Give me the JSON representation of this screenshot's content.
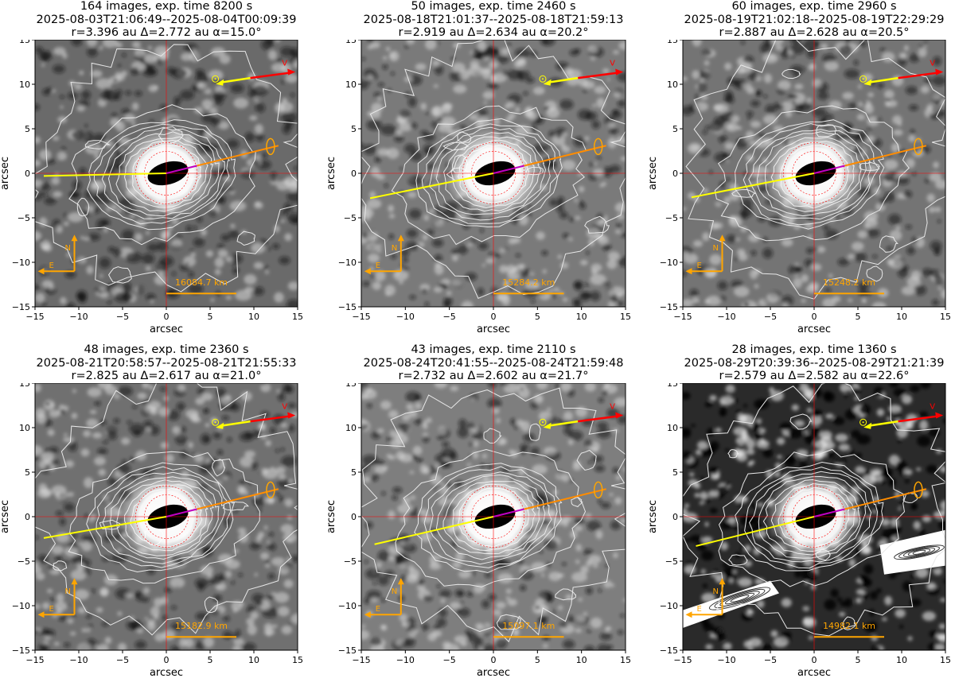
{
  "panels": [
    {
      "title1": "164 images, exp. time 8200 s",
      "title2": "2025-08-03T21:06:49--2025-08-04T00:09:39",
      "title3": "r=3.396 au Δ=2.772 au α=15.0°",
      "scale": "16084.7 km",
      "xlabel": "arcsec",
      "ylabel": "arcsec",
      "bg": "#6a6a6a",
      "compass_n": "N",
      "compass_e": "E",
      "velocity": "V"
    },
    {
      "title1": "50 images, exp. time 2460 s",
      "title2": "2025-08-18T21:01:37--2025-08-18T21:59:13",
      "title3": "r=2.919 au Δ=2.634 au α=20.2°",
      "scale": "15284.2 km",
      "xlabel": "arcsec",
      "ylabel": "arcsec",
      "bg": "#7a7a7a",
      "compass_n": "N",
      "compass_e": "E",
      "velocity": "V"
    },
    {
      "title1": "60 images, exp. time 2960 s",
      "title2": "2025-08-19T21:02:18--2025-08-19T22:29:29",
      "title3": "r=2.887 au Δ=2.628 au α=20.5°",
      "scale": "15248.2 km",
      "xlabel": "arcsec",
      "ylabel": "arcsec",
      "bg": "#747474",
      "compass_n": "N",
      "compass_e": "E",
      "velocity": "V"
    },
    {
      "title1": "48 images, exp. time 2360 s",
      "title2": "2025-08-21T20:58:57--2025-08-21T21:55:33",
      "title3": "r=2.825 au Δ=2.617 au α=21.0°",
      "scale": "15182.9 km",
      "xlabel": "arcsec",
      "ylabel": "arcsec",
      "bg": "#707070",
      "compass_n": "N",
      "compass_e": "E",
      "velocity": "V"
    },
    {
      "title1": "43 images, exp. time 2110 s",
      "title2": "2025-08-24T20:41:55--2025-08-24T21:59:48",
      "title3": "r=2.732 au Δ=2.602 au α=21.7°",
      "scale": "15097.1 km",
      "xlabel": "arcsec",
      "ylabel": "arcsec",
      "bg": "#7e7e7e",
      "compass_n": "N",
      "compass_e": "E",
      "velocity": "V"
    },
    {
      "title1": "28 images, exp. time 1360 s",
      "title2": "2025-08-29T20:39:36--2025-08-29T21:21:39",
      "title3": "r=2.579 au Δ=2.582 au α=22.6°",
      "scale": "14982.1 km",
      "xlabel": "arcsec",
      "ylabel": "arcsec",
      "bg": "#2a2a2a",
      "compass_n": "N",
      "compass_e": "E",
      "velocity": "V"
    }
  ],
  "axis": {
    "ticks": [
      "−15",
      "−10",
      "−5",
      "0",
      "5",
      "10",
      "15"
    ]
  },
  "colors": {
    "sun": "#ffff00",
    "velocity": "#ff0000",
    "antisolar": "#ffff00",
    "tail": "#ff8c00",
    "inner": "#c000c0",
    "orange": "#ffa500",
    "contour": "#e8e8e8",
    "crosshair": "#ff0000"
  }
}
